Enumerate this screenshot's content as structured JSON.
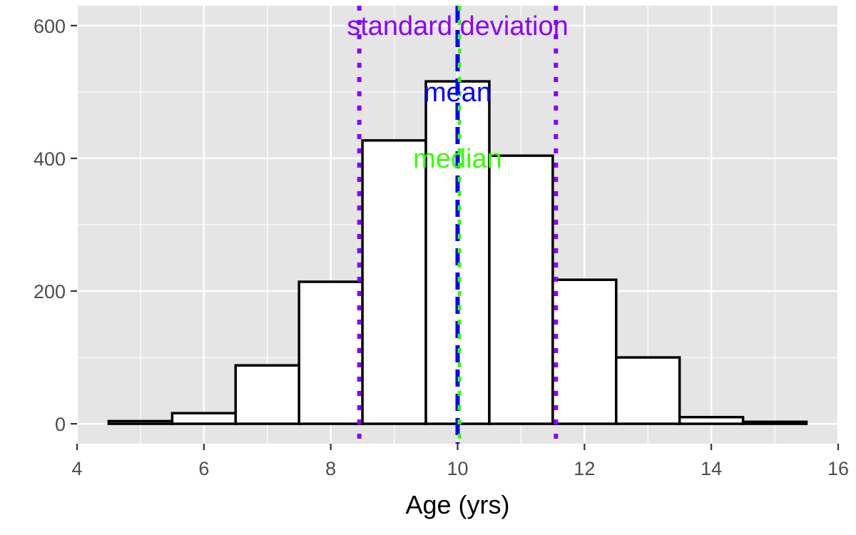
{
  "chart_data": {
    "type": "bar",
    "subtype": "histogram",
    "xlabel": "Age (yrs)",
    "ylabel": "",
    "xlim": [
      4,
      16
    ],
    "ylim": [
      -30,
      630
    ],
    "x_ticks": [
      4,
      6,
      8,
      10,
      12,
      14,
      16
    ],
    "y_ticks": [
      0,
      200,
      400,
      600
    ],
    "grid": true,
    "bins": [
      {
        "start": 4.5,
        "end": 5.5,
        "count": 4
      },
      {
        "start": 5.5,
        "end": 6.5,
        "count": 16
      },
      {
        "start": 6.5,
        "end": 7.5,
        "count": 88
      },
      {
        "start": 7.5,
        "end": 8.5,
        "count": 214
      },
      {
        "start": 8.5,
        "end": 9.5,
        "count": 427
      },
      {
        "start": 9.5,
        "end": 10.5,
        "count": 516
      },
      {
        "start": 10.5,
        "end": 11.5,
        "count": 404
      },
      {
        "start": 11.5,
        "end": 12.5,
        "count": 217
      },
      {
        "start": 12.5,
        "end": 13.5,
        "count": 100
      },
      {
        "start": 13.5,
        "end": 14.5,
        "count": 10
      },
      {
        "start": 14.5,
        "end": 15.5,
        "count": 3
      }
    ],
    "reference_lines": [
      {
        "name": "standard-deviation-lower",
        "x": 8.45,
        "style": "dotted",
        "color": "#8B00FF"
      },
      {
        "name": "standard-deviation-upper",
        "x": 11.55,
        "style": "dotted",
        "color": "#8B00FF"
      },
      {
        "name": "mean",
        "x": 10.0,
        "style": "dashed",
        "color": "#0000FF"
      },
      {
        "name": "median",
        "x": 10.03,
        "style": "dotted",
        "color": "#33FF00"
      }
    ],
    "annotations": [
      {
        "name": "standard-deviation-label",
        "text": "standard deviation",
        "x": 10.0,
        "y": 600,
        "color": "#8B00FF"
      },
      {
        "name": "mean-label",
        "text": "mean",
        "x": 10.0,
        "y": 500,
        "color": "#0000FF"
      },
      {
        "name": "median-label",
        "text": "median",
        "x": 10.0,
        "y": 400,
        "color": "#33FF00"
      }
    ],
    "colors": {
      "panel_background": "#E5E5E5",
      "grid": "#FFFFFF",
      "bar_fill": "#FFFFFF",
      "bar_outline": "#000000"
    }
  }
}
